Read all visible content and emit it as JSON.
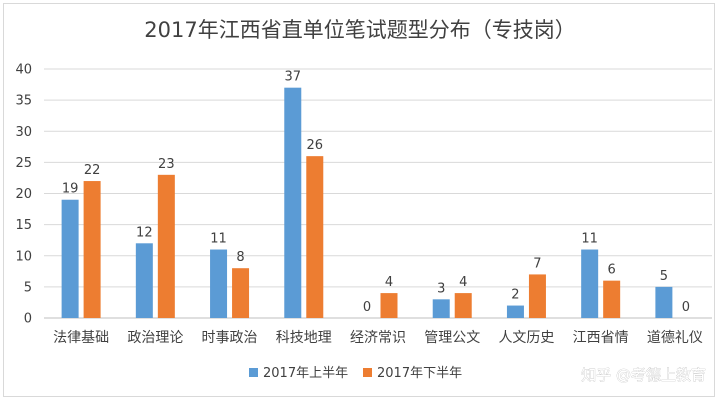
{
  "chart_data": {
    "type": "bar",
    "title": "2017年江西省直单位笔试题型分布（专技岗）",
    "categories": [
      "法律基础",
      "政治理论",
      "时事政治",
      "科技地理",
      "经济常识",
      "管理公文",
      "人文历史",
      "江西省情",
      "道德礼仪"
    ],
    "series": [
      {
        "name": "2017年上半年",
        "color": "#5b9bd5",
        "values": [
          19,
          12,
          11,
          37,
          0,
          3,
          2,
          11,
          5
        ]
      },
      {
        "name": "2017年下半年",
        "color": "#ed7d31",
        "values": [
          22,
          23,
          8,
          26,
          4,
          4,
          7,
          6,
          0
        ]
      }
    ],
    "ylim": [
      0,
      40
    ],
    "yticks": [
      0,
      5,
      10,
      15,
      20,
      25,
      30,
      35,
      40
    ],
    "grid": true,
    "legend": "bottom",
    "data_labels": true
  },
  "watermark": "知乎 @考德上教育"
}
